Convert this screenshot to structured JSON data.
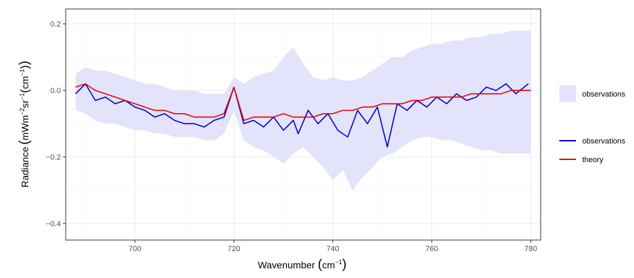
{
  "chart_data": {
    "type": "line",
    "xlabel": "Wavenumber",
    "xlabel_unit_base": "cm",
    "xlabel_unit_exp": "−1",
    "ylabel": "Radiance",
    "ylabel_unit_parts": [
      "mWm",
      "−2",
      "sr",
      "−1",
      "cm",
      "−1"
    ],
    "xlim": [
      686,
      782
    ],
    "ylim": [
      -0.45,
      0.245
    ],
    "x_ticks": [
      700,
      720,
      740,
      760,
      780
    ],
    "x_tick_labels": [
      "700",
      "720",
      "740",
      "760",
      "780"
    ],
    "y_ticks": [
      -0.4,
      -0.2,
      0.0,
      0.2
    ],
    "y_tick_labels": [
      "−0.4",
      "−0.2",
      "0.0",
      "0.2"
    ],
    "grid": true,
    "legend_position": "right",
    "ribbon": {
      "name": "observations",
      "color": "#e3e3fb",
      "x": [
        688,
        690,
        692,
        694,
        696,
        698,
        700,
        702,
        704,
        706,
        708,
        710,
        712,
        714,
        716,
        718,
        720,
        722,
        724,
        726,
        728,
        730,
        732,
        734,
        736,
        738,
        740,
        742,
        744,
        746,
        748,
        750,
        752,
        754,
        756,
        758,
        760,
        762,
        764,
        766,
        768,
        770,
        772,
        774,
        776,
        778,
        780
      ],
      "lower": [
        -0.06,
        -0.07,
        -0.09,
        -0.1,
        -0.1,
        -0.11,
        -0.12,
        -0.12,
        -0.13,
        -0.13,
        -0.14,
        -0.14,
        -0.14,
        -0.15,
        -0.15,
        -0.13,
        -0.06,
        -0.15,
        -0.17,
        -0.18,
        -0.2,
        -0.22,
        -0.19,
        -0.17,
        -0.2,
        -0.23,
        -0.27,
        -0.24,
        -0.3,
        -0.26,
        -0.23,
        -0.2,
        -0.19,
        -0.17,
        -0.15,
        -0.14,
        -0.14,
        -0.15,
        -0.15,
        -0.16,
        -0.17,
        -0.18,
        -0.18,
        -0.19,
        -0.19,
        -0.19,
        -0.19
      ],
      "upper": [
        0.05,
        0.07,
        0.06,
        0.06,
        0.05,
        0.04,
        0.03,
        0.02,
        0.02,
        0.01,
        0.0,
        0.0,
        0.0,
        -0.01,
        -0.01,
        -0.01,
        0.04,
        0.02,
        0.04,
        0.05,
        0.06,
        0.1,
        0.13,
        0.08,
        0.04,
        0.03,
        0.04,
        0.03,
        0.03,
        0.04,
        0.06,
        0.08,
        0.1,
        0.1,
        0.12,
        0.13,
        0.14,
        0.14,
        0.15,
        0.15,
        0.16,
        0.16,
        0.17,
        0.17,
        0.18,
        0.18,
        0.18
      ]
    },
    "series": [
      {
        "name": "observations",
        "color": "#0000cc",
        "x": [
          688,
          690,
          692,
          694,
          696,
          698,
          700,
          702,
          704,
          706,
          708,
          710,
          712,
          714,
          716,
          718,
          720,
          722,
          724,
          726,
          728,
          730,
          732,
          733,
          735,
          737,
          739,
          741,
          743,
          745,
          747,
          749,
          751,
          753,
          755,
          757,
          759,
          761,
          763,
          765,
          767,
          769,
          771,
          773,
          775,
          777,
          779.5
        ],
        "values": [
          -0.01,
          0.02,
          -0.03,
          -0.02,
          -0.04,
          -0.03,
          -0.05,
          -0.06,
          -0.08,
          -0.07,
          -0.09,
          -0.1,
          -0.1,
          -0.11,
          -0.09,
          -0.08,
          0.01,
          -0.1,
          -0.09,
          -0.11,
          -0.08,
          -0.12,
          -0.09,
          -0.13,
          -0.06,
          -0.1,
          -0.07,
          -0.12,
          -0.14,
          -0.06,
          -0.1,
          -0.05,
          -0.17,
          -0.04,
          -0.06,
          -0.03,
          -0.05,
          -0.02,
          -0.04,
          -0.01,
          -0.03,
          -0.02,
          0.01,
          0.0,
          0.02,
          -0.01,
          0.02
        ]
      },
      {
        "name": "theory",
        "color": "#ee0000",
        "x": [
          688,
          690,
          692,
          694,
          696,
          698,
          700,
          702,
          704,
          706,
          708,
          710,
          712,
          714,
          716,
          718,
          720,
          722,
          724,
          726,
          728,
          730,
          732,
          734,
          736,
          738,
          740,
          742,
          744,
          746,
          748,
          750,
          752,
          754,
          756,
          758,
          760,
          762,
          764,
          766,
          768,
          770,
          772,
          774,
          776,
          778,
          780
        ],
        "values": [
          0.01,
          0.02,
          0.0,
          -0.01,
          -0.02,
          -0.03,
          -0.04,
          -0.05,
          -0.06,
          -0.06,
          -0.07,
          -0.07,
          -0.08,
          -0.08,
          -0.08,
          -0.07,
          0.01,
          -0.09,
          -0.08,
          -0.08,
          -0.08,
          -0.07,
          -0.08,
          -0.08,
          -0.08,
          -0.07,
          -0.07,
          -0.06,
          -0.06,
          -0.05,
          -0.05,
          -0.04,
          -0.04,
          -0.04,
          -0.03,
          -0.03,
          -0.02,
          -0.02,
          -0.02,
          -0.02,
          -0.01,
          -0.01,
          -0.01,
          -0.01,
          0.0,
          0.0,
          0.0
        ]
      }
    ]
  },
  "legend": {
    "fill_label": "observations",
    "line_labels": [
      "observations",
      "theory"
    ]
  }
}
